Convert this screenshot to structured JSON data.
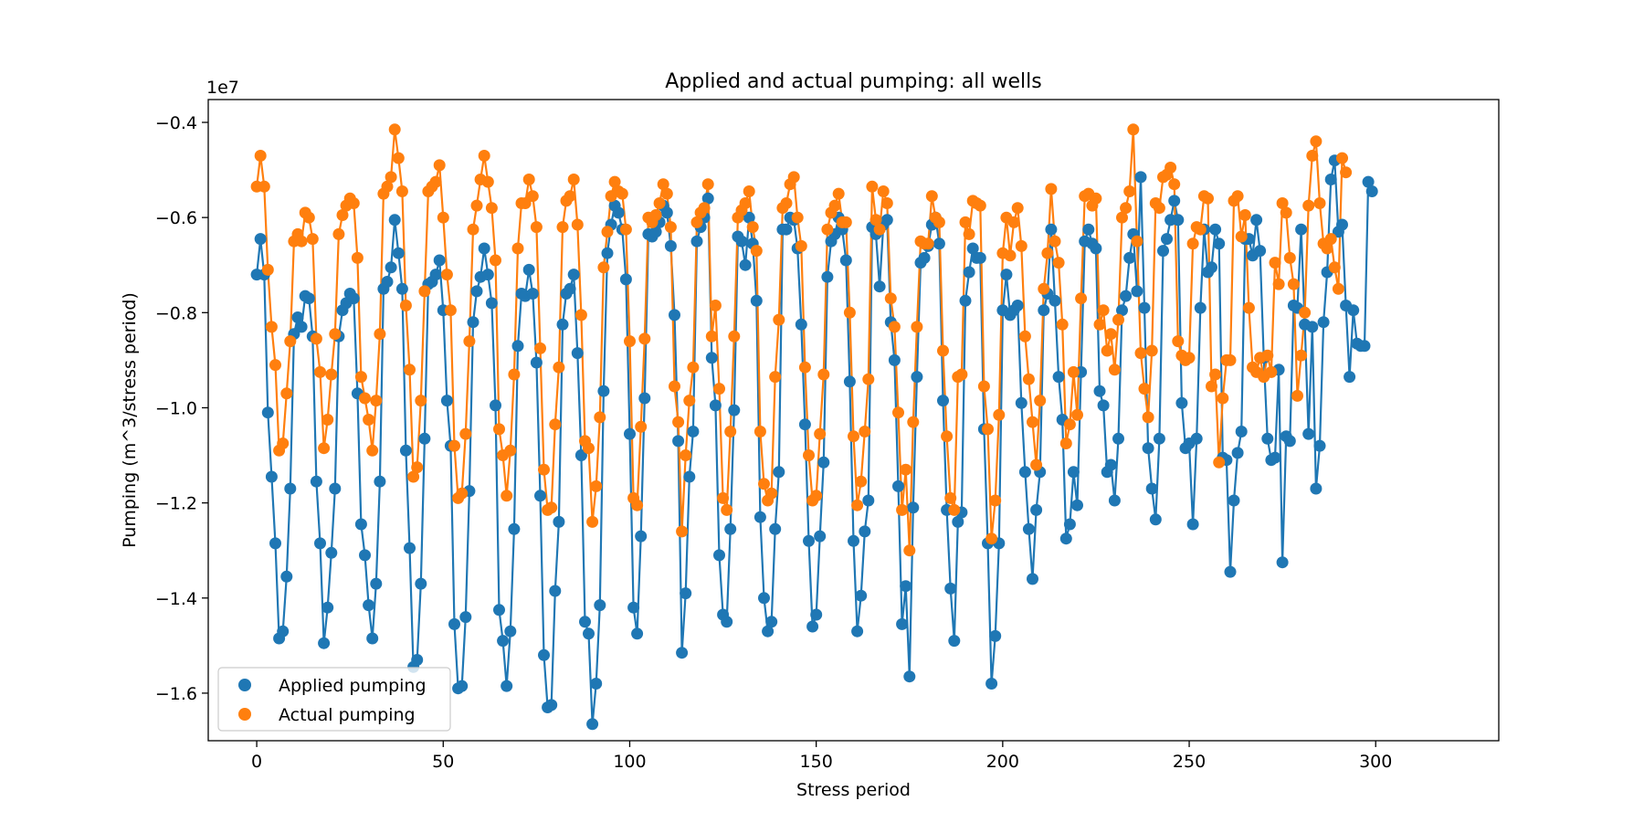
{
  "chart_data": {
    "type": "line",
    "title": "Applied and actual pumping: all wells",
    "xlabel": "Stress period",
    "ylabel": "Pumping (m^3/stress period)",
    "y_scale_label": "1e7",
    "xlim": [
      -13,
      333
    ],
    "ylim": [
      -1.7,
      -0.352
    ],
    "x_ticks": [
      0,
      50,
      100,
      150,
      200,
      250,
      300
    ],
    "y_ticks": [
      -1.6,
      -1.4,
      -1.2,
      -1.0,
      -0.8,
      -0.6,
      -0.4
    ],
    "y_tick_labels": [
      "−1.6",
      "−1.4",
      "−1.2",
      "−1.0",
      "−0.8",
      "−0.6",
      "−0.4"
    ],
    "legend_position": "lower-left",
    "grid": false,
    "marker": "circle",
    "x_start": 0,
    "x_step": 1,
    "series": [
      {
        "name": "Applied pumping",
        "color": "#1f77b4",
        "values": [
          -0.72,
          -0.645,
          -0.72,
          -1.01,
          -1.145,
          -1.285,
          -1.485,
          -1.47,
          -1.355,
          -1.17,
          -0.845,
          -0.81,
          -0.83,
          -0.765,
          -0.77,
          -0.85,
          -1.155,
          -1.285,
          -1.495,
          -1.42,
          -1.305,
          -1.17,
          -0.85,
          -0.795,
          -0.78,
          -0.76,
          -0.77,
          -0.97,
          -1.245,
          -1.31,
          -1.415,
          -1.485,
          -1.37,
          -1.155,
          -0.75,
          -0.735,
          -0.705,
          -0.605,
          -0.675,
          -0.75,
          -1.09,
          -1.295,
          -1.545,
          -1.53,
          -1.37,
          -1.065,
          -0.74,
          -0.735,
          -0.72,
          -0.69,
          -0.795,
          -0.985,
          -1.08,
          -1.455,
          -1.59,
          -1.585,
          -1.44,
          -1.175,
          -0.82,
          -0.755,
          -0.725,
          -0.665,
          -0.72,
          -0.78,
          -0.995,
          -1.425,
          -1.49,
          -1.585,
          -1.47,
          -1.255,
          -0.87,
          -0.76,
          -0.765,
          -0.71,
          -0.76,
          -0.905,
          -1.185,
          -1.52,
          -1.63,
          -1.625,
          -1.385,
          -1.24,
          -0.825,
          -0.76,
          -0.75,
          -0.72,
          -0.885,
          -1.1,
          -1.45,
          -1.475,
          -1.665,
          -1.58,
          -1.415,
          -0.965,
          -0.675,
          -0.615,
          -0.575,
          -0.59,
          -0.625,
          -0.73,
          -1.055,
          -1.42,
          -1.475,
          -1.27,
          -0.98,
          -0.635,
          -0.64,
          -0.63,
          -0.61,
          -0.575,
          -0.59,
          -0.66,
          -0.805,
          -1.07,
          -1.515,
          -1.39,
          -1.145,
          -1.05,
          -0.65,
          -0.62,
          -0.6,
          -0.56,
          -0.895,
          -0.995,
          -1.31,
          -1.435,
          -1.45,
          -1.255,
          -1.005,
          -0.64,
          -0.65,
          -0.7,
          -0.6,
          -0.655,
          -0.775,
          -1.23,
          -1.4,
          -1.47,
          -1.45,
          -1.255,
          -1.135,
          -0.625,
          -0.625,
          -0.6,
          -0.605,
          -0.665,
          -0.825,
          -1.035,
          -1.28,
          -1.46,
          -1.435,
          -1.27,
          -1.115,
          -0.725,
          -0.65,
          -0.635,
          -0.6,
          -0.625,
          -0.69,
          -0.945,
          -1.28,
          -1.47,
          -1.395,
          -1.26,
          -1.195,
          -0.62,
          -0.635,
          -0.745,
          -0.615,
          -0.605,
          -0.82,
          -0.9,
          -1.165,
          -1.455,
          -1.375,
          -1.565,
          -1.21,
          -0.935,
          -0.695,
          -0.685,
          -0.66,
          -0.615,
          -0.6,
          -0.655,
          -0.985,
          -1.215,
          -1.38,
          -1.49,
          -1.24,
          -1.22,
          -0.775,
          -0.715,
          -0.665,
          -0.685,
          -0.685,
          -1.045,
          -1.285,
          -1.58,
          -1.48,
          -1.285,
          -0.795,
          -0.72,
          -0.805,
          -0.795,
          -0.785,
          -0.99,
          -1.135,
          -1.255,
          -1.36,
          -1.215,
          -1.135,
          -0.795,
          -0.76,
          -0.625,
          -0.775,
          -0.935,
          -1.025,
          -1.275,
          -1.245,
          -1.135,
          -1.205,
          -0.925,
          -0.65,
          -0.625,
          -0.655,
          -0.665,
          -0.965,
          -0.995,
          -1.135,
          -1.12,
          -1.195,
          -1.065,
          -0.795,
          -0.765,
          -0.685,
          -0.635,
          -0.755,
          -0.515,
          -0.79,
          -1.085,
          -1.17,
          -1.235,
          -1.065,
          -0.67,
          -0.645,
          -0.605,
          -0.565,
          -0.605,
          -0.99,
          -1.085,
          -1.075,
          -1.245,
          -1.065,
          -0.79,
          -0.625,
          -0.715,
          -0.705,
          -0.625,
          -0.655,
          -1.105,
          -1.11,
          -1.345,
          -1.195,
          -1.095,
          -1.05,
          -0.645,
          -0.645,
          -0.68,
          -0.605,
          -0.67,
          -0.895,
          -1.065,
          -1.11,
          -1.105,
          -0.92,
          -1.325,
          -1.06,
          -1.07,
          -0.785,
          -0.79,
          -0.625,
          -0.825,
          -1.055,
          -0.83,
          -1.17,
          -1.08,
          -0.82,
          -0.715,
          -0.52,
          -0.48,
          -0.63,
          -0.615,
          -0.785,
          -0.935,
          -0.795,
          -0.865,
          -0.87,
          -0.87,
          -0.525,
          -0.545
        ]
      },
      {
        "name": "Actual pumping",
        "color": "#ff7f0e",
        "values": [
          -0.535,
          -0.47,
          -0.535,
          -0.71,
          -0.83,
          -0.91,
          -1.09,
          -1.075,
          -0.97,
          -0.86,
          -0.65,
          -0.635,
          -0.65,
          -0.59,
          -0.6,
          -0.645,
          -0.855,
          -0.925,
          -1.085,
          -1.025,
          -0.93,
          -0.845,
          -0.635,
          -0.595,
          -0.575,
          -0.56,
          -0.57,
          -0.685,
          -0.935,
          -0.98,
          -1.025,
          -1.09,
          -0.985,
          -0.845,
          -0.55,
          -0.535,
          -0.515,
          -0.415,
          -0.475,
          -0.545,
          -0.785,
          -0.92,
          -1.145,
          -1.125,
          -0.985,
          -0.755,
          -0.545,
          -0.535,
          -0.525,
          -0.49,
          -0.6,
          -0.72,
          -0.795,
          -1.08,
          -1.19,
          -1.18,
          -1.055,
          -0.86,
          -0.625,
          -0.575,
          -0.52,
          -0.47,
          -0.525,
          -0.58,
          -0.69,
          -1.045,
          -1.1,
          -1.185,
          -1.09,
          -0.93,
          -0.665,
          -0.57,
          -0.57,
          -0.52,
          -0.555,
          -0.62,
          -0.875,
          -1.13,
          -1.215,
          -1.21,
          -1.035,
          -0.915,
          -0.62,
          -0.565,
          -0.555,
          -0.52,
          -0.615,
          -0.805,
          -1.07,
          -1.085,
          -1.24,
          -1.165,
          -1.02,
          -0.705,
          -0.63,
          -0.555,
          -0.525,
          -0.545,
          -0.55,
          -0.625,
          -0.86,
          -1.19,
          -1.205,
          -1.04,
          -0.855,
          -0.6,
          -0.61,
          -0.595,
          -0.57,
          -0.53,
          -0.55,
          -0.62,
          -0.955,
          -1.03,
          -1.26,
          -1.1,
          -0.985,
          -0.915,
          -0.61,
          -0.59,
          -0.58,
          -0.53,
          -0.85,
          -0.785,
          -0.96,
          -1.19,
          -1.215,
          -1.05,
          -0.85,
          -0.6,
          -0.585,
          -0.57,
          -0.545,
          -0.62,
          -0.67,
          -1.05,
          -1.16,
          -1.195,
          -1.18,
          -0.935,
          -0.815,
          -0.58,
          -0.57,
          -0.53,
          -0.515,
          -0.6,
          -0.66,
          -0.915,
          -1.1,
          -1.195,
          -1.185,
          -1.055,
          -0.93,
          -0.625,
          -0.59,
          -0.575,
          -0.55,
          -0.61,
          -0.61,
          -0.8,
          -1.06,
          -1.205,
          -1.155,
          -1.05,
          -0.94,
          -0.535,
          -0.605,
          -0.625,
          -0.545,
          -0.57,
          -0.77,
          -0.83,
          -1.01,
          -1.215,
          -1.13,
          -1.3,
          -1.03,
          -0.83,
          -0.65,
          -0.655,
          -0.655,
          -0.555,
          -0.6,
          -0.61,
          -0.88,
          -1.06,
          -1.19,
          -1.215,
          -0.935,
          -0.93,
          -0.61,
          -0.635,
          -0.565,
          -0.57,
          -0.575,
          -0.955,
          -1.045,
          -1.275,
          -1.195,
          -1.015,
          -0.675,
          -0.6,
          -0.68,
          -0.61,
          -0.58,
          -0.66,
          -0.85,
          -0.94,
          -1.03,
          -1.12,
          -0.985,
          -0.75,
          -0.675,
          -0.54,
          -0.65,
          -0.695,
          -0.825,
          -1.075,
          -1.035,
          -0.925,
          -1.015,
          -0.77,
          -0.555,
          -0.55,
          -0.575,
          -0.56,
          -0.825,
          -0.795,
          -0.88,
          -0.845,
          -0.92,
          -0.815,
          -0.6,
          -0.58,
          -0.545,
          -0.415,
          -0.65,
          -0.885,
          -0.96,
          -1.02,
          -0.88,
          -0.57,
          -0.58,
          -0.515,
          -0.51,
          -0.495,
          -0.53,
          -0.86,
          -0.89,
          -0.9,
          -0.895,
          -0.655,
          -0.62,
          -0.625,
          -0.555,
          -0.56,
          -0.955,
          -0.93,
          -1.115,
          -0.98,
          -0.9,
          -0.9,
          -0.565,
          -0.555,
          -0.64,
          -0.595,
          -0.79,
          -0.915,
          -0.925,
          -0.895,
          -0.935,
          -0.89,
          -0.925,
          -0.695,
          -0.74,
          -0.57,
          -0.59,
          -0.685,
          -0.74,
          -0.975,
          -0.89,
          -0.8,
          -0.575,
          -0.47,
          -0.44,
          -0.57,
          -0.655,
          -0.665,
          -0.645,
          -0.705,
          -0.75,
          -0.475,
          -0.505
        ]
      }
    ]
  }
}
